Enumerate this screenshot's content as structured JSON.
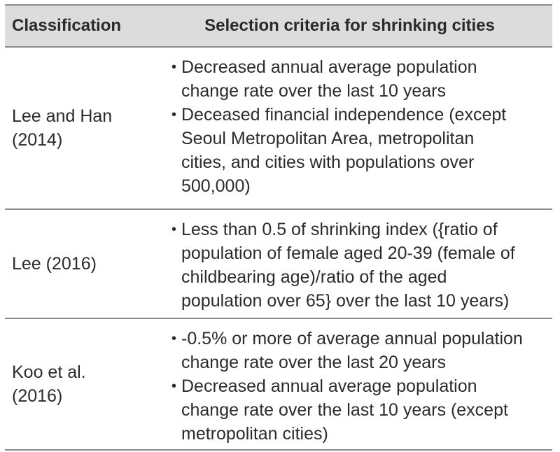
{
  "table": {
    "headers": {
      "classification": "Classification",
      "criteria": "Selection criteria for shrinking cities"
    },
    "rows": [
      {
        "classification": "Lee and Han\n(2014)",
        "criteria": [
          "Decreased annual average population\nchange rate over the last 10 years",
          "Deceased financial independence (except\nSeoul Metropolitan Area, metropolitan\ncities, and cities with populations over\n500,000)"
        ]
      },
      {
        "classification": "Lee (2016)",
        "criteria": [
          "Less than 0.5 of shrinking index ({ratio of\npopulation of female aged 20-39 (female of\nchildbearing age)/ratio of the aged\npopulation over 65} over the last 10 years)"
        ]
      },
      {
        "classification": "Koo et al.\n(2016)",
        "criteria": [
          "-0.5% or more of average annual population\nchange rate over the last 20 years",
          "Decreased annual average population\nchange rate over the last 10 years (except\nmetropolitan cities)"
        ]
      }
    ],
    "bullet_symbol": "•"
  }
}
